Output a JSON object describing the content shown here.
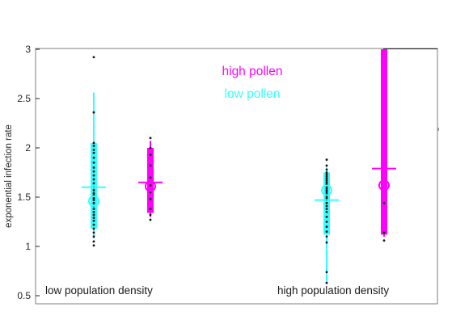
{
  "chart_data": {
    "type": "scatter",
    "title": "",
    "ylabel": "exponential infection rate",
    "xlabel": "",
    "ylim": [
      0.5,
      3
    ],
    "yticks": [
      "0.5",
      "1",
      "1.5",
      "2",
      "2.5",
      "3"
    ],
    "grid": false,
    "legend_position": "top-center",
    "colors": {
      "high_pollen": "#ff00ff",
      "low_pollen": "#33ffff"
    },
    "legend": [
      {
        "name": "high pollen",
        "color": "#ff00ff"
      },
      {
        "name": "low pollen",
        "color": "#33ffff"
      }
    ],
    "annotations": [
      {
        "text": "low population density",
        "group": 0
      },
      {
        "text": "high population density",
        "group": 1
      }
    ],
    "groups": [
      "low population density",
      "high population density"
    ],
    "series": [
      {
        "name": "low pollen",
        "group": 0,
        "color": "#33ffff",
        "mean": 1.6,
        "median": 1.46,
        "whisker": [
          1.08,
          2.56
        ],
        "box": [
          1.18,
          2.05
        ],
        "points": [
          2.92,
          2.36,
          2.05,
          2.02,
          1.98,
          1.95,
          1.9,
          1.85,
          1.8,
          1.76,
          1.72,
          1.68,
          1.64,
          1.6,
          1.57,
          1.54,
          1.52,
          1.49,
          1.47,
          1.44,
          1.41,
          1.38,
          1.35,
          1.32,
          1.29,
          1.26,
          1.22,
          1.18,
          1.14,
          1.1,
          1.05,
          1.01
        ]
      },
      {
        "name": "high pollen",
        "group": 0,
        "color": "#ff00ff",
        "mean": 1.65,
        "median": 1.61,
        "whisker": [
          1.3,
          2.07
        ],
        "box": [
          1.34,
          2.0
        ],
        "points": [
          2.1,
          2.0,
          1.93,
          1.82,
          1.7,
          1.62,
          1.55,
          1.48,
          1.38,
          1.32,
          1.27
        ]
      },
      {
        "name": "low pollen",
        "group": 1,
        "color": "#33ffff",
        "mean": 1.47,
        "median": 1.57,
        "whisker": [
          0.62,
          1.8
        ],
        "box": [
          1.12,
          1.75
        ],
        "points": [
          1.88,
          1.82,
          1.78,
          1.75,
          1.73,
          1.71,
          1.69,
          1.67,
          1.65,
          1.63,
          1.61,
          1.59,
          1.57,
          1.55,
          1.53,
          1.51,
          1.49,
          1.47,
          1.44,
          1.41,
          1.38,
          1.35,
          1.3,
          1.25,
          1.2,
          1.15,
          1.1,
          1.04,
          0.74,
          0.63
        ]
      },
      {
        "name": "high pollen",
        "group": 1,
        "color": "#ff00ff",
        "mean": 1.79,
        "median": 1.62,
        "whisker": [
          1.1,
          3.0
        ],
        "box": [
          1.12,
          3.0
        ],
        "points": [
          1.44,
          1.14,
          1.06
        ]
      }
    ]
  }
}
